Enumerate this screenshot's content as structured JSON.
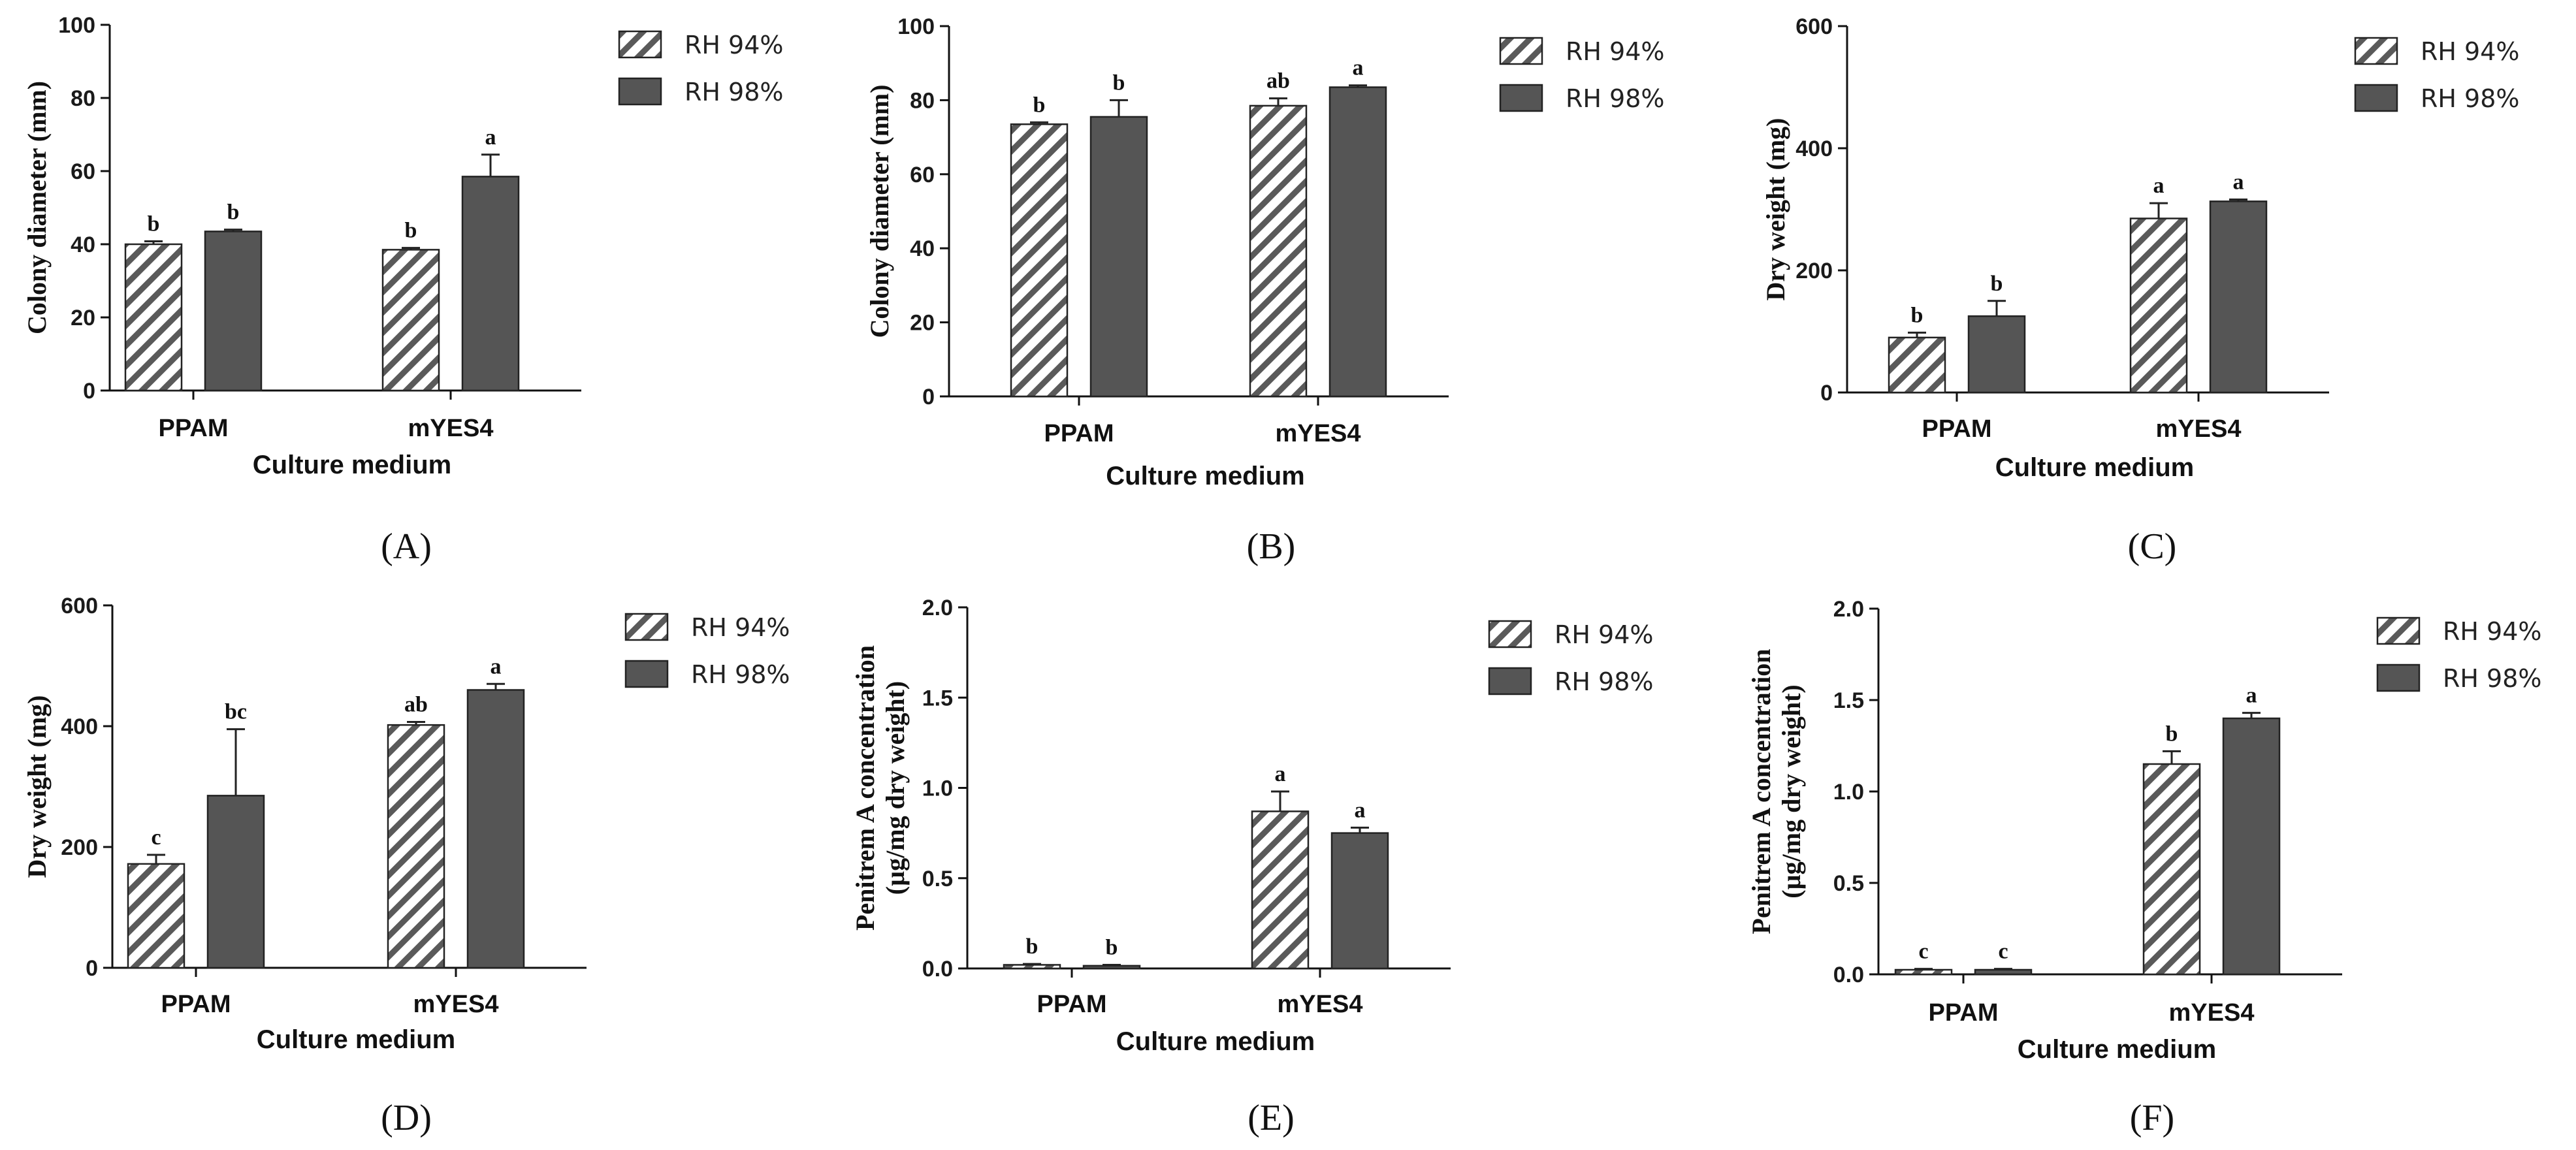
{
  "colors": {
    "dark_bar": "#555555",
    "hatch_line": "#555555",
    "axis": "#111111"
  },
  "chart_data": [
    {
      "type": "bar",
      "label": "(A)",
      "categories": [
        "PPAM",
        "mYES4"
      ],
      "series": [
        {
          "name": "RH 94%",
          "values": [
            40,
            38.5
          ],
          "errors": [
            0.8,
            0.5
          ],
          "letters": [
            "b",
            "b"
          ]
        },
        {
          "name": "RH 98%",
          "values": [
            43.5,
            58.5
          ],
          "errors": [
            0.5,
            6
          ],
          "letters": [
            "b",
            "a"
          ]
        }
      ],
      "xlabel": "Culture medium",
      "ylabel": [
        "Colony diameter (mm)"
      ],
      "ylim": [
        0,
        100
      ],
      "yticks": [
        0,
        20,
        40,
        60,
        80,
        100
      ],
      "yticklabels": [
        "0",
        "20",
        "40",
        "60",
        "80",
        "100"
      ]
    },
    {
      "type": "bar",
      "label": "(B)",
      "categories": [
        "PPAM",
        "mYES4"
      ],
      "series": [
        {
          "name": "RH 94%",
          "values": [
            73.5,
            78.5
          ],
          "errors": [
            0.5,
            2
          ],
          "letters": [
            "b",
            "ab"
          ]
        },
        {
          "name": "RH 98%",
          "values": [
            75.5,
            83.5
          ],
          "errors": [
            4.5,
            0.5
          ],
          "letters": [
            "b",
            "a"
          ]
        }
      ],
      "xlabel": "Culture medium",
      "ylabel": [
        "Colony diameter (mm)"
      ],
      "ylim": [
        0,
        100
      ],
      "yticks": [
        0,
        20,
        40,
        60,
        80,
        100
      ],
      "yticklabels": [
        "0",
        "20",
        "40",
        "60",
        "80",
        "100"
      ]
    },
    {
      "type": "bar",
      "label": "(C)",
      "categories": [
        "PPAM",
        "mYES4"
      ],
      "series": [
        {
          "name": "RH 94%",
          "values": [
            90,
            285
          ],
          "errors": [
            8,
            25
          ],
          "letters": [
            "b",
            "a"
          ]
        },
        {
          "name": "RH 98%",
          "values": [
            125,
            313
          ],
          "errors": [
            25,
            3
          ],
          "letters": [
            "b",
            "a"
          ]
        }
      ],
      "xlabel": "Culture medium",
      "ylabel": [
        "Dry weight (mg)"
      ],
      "ylim": [
        0,
        600
      ],
      "yticks": [
        0,
        200,
        400,
        600
      ],
      "yticklabels": [
        "0",
        "200",
        "400",
        "600"
      ]
    },
    {
      "type": "bar",
      "label": "(D)",
      "categories": [
        "PPAM",
        "mYES4"
      ],
      "series": [
        {
          "name": "RH 94%",
          "values": [
            172,
            402
          ],
          "errors": [
            15,
            5
          ],
          "letters": [
            "c",
            "ab"
          ]
        },
        {
          "name": "RH 98%",
          "values": [
            285,
            460
          ],
          "errors": [
            110,
            10
          ],
          "letters": [
            "bc",
            "a"
          ]
        }
      ],
      "xlabel": "Culture medium",
      "ylabel": [
        "Dry weight (mg)"
      ],
      "ylim": [
        0,
        600
      ],
      "yticks": [
        0,
        200,
        400,
        600
      ],
      "yticklabels": [
        "0",
        "200",
        "400",
        "600"
      ]
    },
    {
      "type": "bar",
      "label": "(E)",
      "categories": [
        "PPAM",
        "mYES4"
      ],
      "series": [
        {
          "name": "RH 94%",
          "values": [
            0.02,
            0.87
          ],
          "errors": [
            0.005,
            0.11
          ],
          "letters": [
            "b",
            "a"
          ]
        },
        {
          "name": "RH 98%",
          "values": [
            0.015,
            0.75
          ],
          "errors": [
            0.005,
            0.03
          ],
          "letters": [
            "b",
            "a"
          ]
        }
      ],
      "xlabel": "Culture medium",
      "ylabel": [
        "Penitrem A concentration",
        "(µg/mg dry weight)"
      ],
      "ylim": [
        0,
        2
      ],
      "yticks": [
        0,
        0.5,
        1,
        1.5,
        2
      ],
      "yticklabels": [
        "0.0",
        "0.5",
        "1.0",
        "1.5",
        "2.0"
      ]
    },
    {
      "type": "bar",
      "label": "(F)",
      "categories": [
        "PPAM",
        "mYES4"
      ],
      "series": [
        {
          "name": "RH 94%",
          "values": [
            0.025,
            1.15
          ],
          "errors": [
            0.005,
            0.07
          ],
          "letters": [
            "c",
            "b"
          ]
        },
        {
          "name": "RH 98%",
          "values": [
            0.025,
            1.4
          ],
          "errors": [
            0.005,
            0.03
          ],
          "letters": [
            "c",
            "a"
          ]
        }
      ],
      "xlabel": "Culture medium",
      "ylabel": [
        "Penitrem A concentration",
        "(µg/mg dry weight)"
      ],
      "ylim": [
        0,
        2
      ],
      "yticks": [
        0,
        0.5,
        1,
        1.5,
        2
      ],
      "yticklabels": [
        "0.0",
        "0.5",
        "1.0",
        "1.5",
        "2.0"
      ]
    }
  ]
}
